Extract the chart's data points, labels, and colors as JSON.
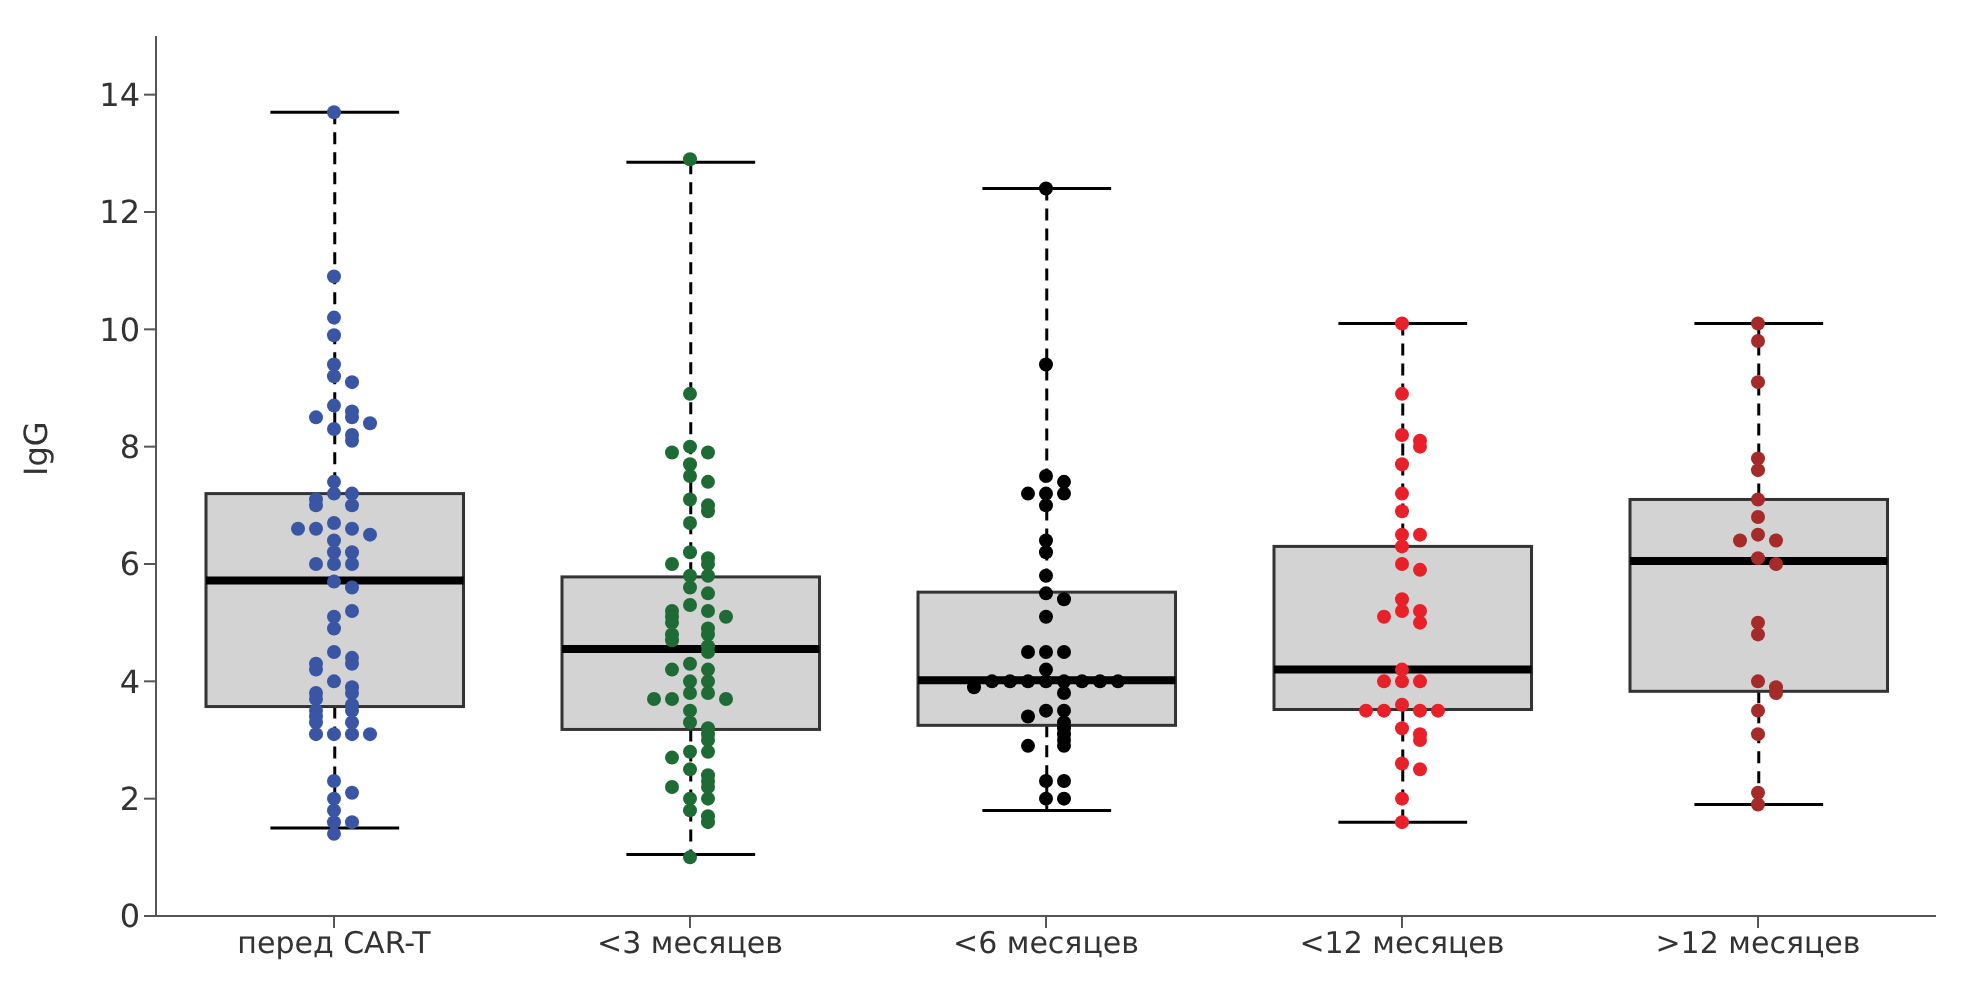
{
  "chart_data": {
    "type": "box",
    "ylabel": "IgG",
    "categories": [
      "перед CAR-T",
      "<3 месяцев",
      "<6 месяцев",
      "<12 месяцев",
      ">12 месяцев"
    ],
    "color": "#d3d3d3",
    "boxes": [
      {
        "low": 1.5,
        "q1": 3.57,
        "median": 5.72,
        "q3": 7.2,
        "high": 13.7
      },
      {
        "low": 1.05,
        "q1": 3.18,
        "median": 4.55,
        "q3": 5.78,
        "high": 12.85
      },
      {
        "low": 1.8,
        "q1": 3.25,
        "median": 4.02,
        "q3": 5.52,
        "high": 12.4
      },
      {
        "low": 1.6,
        "q1": 3.52,
        "median": 4.2,
        "q3": 6.3,
        "high": 10.1
      },
      {
        "low": 1.9,
        "q1": 3.83,
        "median": 6.05,
        "q3": 7.1,
        "high": 10.1
      }
    ],
    "ylim": [
      0,
      15
    ],
    "yticks": [
      0,
      2,
      4,
      6,
      8,
      10,
      12,
      14
    ],
    "series": [
      {
        "type": "scatter",
        "color": "#3a55a4",
        "x": [
          "перед CAR-T",
          "перед CAR-T",
          "перед CAR-T",
          "перед CAR-T",
          "перед CAR-T",
          "перед CAR-T",
          "перед CAR-T",
          "перед CAR-T",
          "перед CAR-T",
          "перед CAR-T",
          "перед CAR-T",
          "перед CAR-T",
          "перед CAR-T",
          "перед CAR-T",
          "перед CAR-T",
          "перед CAR-T",
          "перед CAR-T",
          "перед CAR-T",
          "перед CAR-T",
          "перед CAR-T",
          "перед CAR-T",
          "перед CAR-T",
          "перед CAR-T",
          "перед CAR-T",
          "перед CAR-T",
          "перед CAR-T",
          "перед CAR-T",
          "перед CAR-T",
          "перед CAR-T",
          "перед CAR-T",
          "перед CAR-T",
          "перед CAR-T",
          "перед CAR-T",
          "перед CAR-T",
          "перед CAR-T",
          "перед CAR-T",
          "перед CAR-T",
          "перед CAR-T",
          "перед CAR-T",
          "перед CAR-T",
          "перед CAR-T",
          "перед CAR-T",
          "перед CAR-T",
          "перед CAR-T",
          "перед CAR-T",
          "перед CAR-T",
          "перед CAR-T",
          "перед CAR-T",
          "перед CAR-T",
          "перед CAR-T",
          "перед CAR-T",
          "перед CAR-T",
          "перед CAR-T",
          "перед CAR-T",
          "перед CAR-T",
          "перед CAR-T",
          "перед CAR-T",
          "перед CAR-T",
          "перед CAR-T",
          "перед CAR-T",
          "перед CAR-T",
          "перед CAR-T",
          "перед CAR-T",
          "перед CAR-T"
        ],
        "values": [
          13.7,
          10.9,
          10.2,
          9.9,
          9.4,
          9.2,
          9.1,
          8.7,
          8.6,
          8.5,
          8.5,
          8.3,
          8.2,
          8.1,
          8.4,
          7.4,
          7.2,
          7.2,
          7.1,
          7.0,
          7.0,
          6.7,
          6.6,
          6.4,
          6.6,
          6.5,
          6.6,
          6.2,
          6.2,
          6.0,
          6.0,
          6.0,
          5.7,
          5.6,
          5.1,
          5.2,
          4.9,
          4.5,
          4.4,
          4.3,
          4.3,
          4.2,
          4.0,
          3.9,
          3.8,
          3.8,
          3.7,
          3.6,
          3.5,
          3.5,
          3.4,
          3.3,
          3.3,
          3.1,
          3.1,
          3.1,
          3.1,
          2.3,
          2.0,
          2.1,
          1.8,
          1.6,
          1.6,
          1.4
        ]
      },
      {
        "type": "scatter",
        "color": "#1e6b35",
        "x": [
          "<3 месяцев",
          "<3 месяцев",
          "<3 месяцев",
          "<3 месяцев",
          "<3 месяцев",
          "<3 месяцев",
          "<3 месяцев",
          "<3 месяцев",
          "<3 месяцев",
          "<3 месяцев",
          "<3 месяцев",
          "<3 месяцев",
          "<3 месяцев",
          "<3 месяцев",
          "<3 месяцев",
          "<3 месяцев",
          "<3 месяцев",
          "<3 месяцев",
          "<3 месяцев",
          "<3 месяцев",
          "<3 месяцев",
          "<3 месяцев",
          "<3 месяцев",
          "<3 месяцев",
          "<3 месяцев",
          "<3 месяцев",
          "<3 месяцев",
          "<3 месяцев",
          "<3 месяцев",
          "<3 месяцев",
          "<3 месяцев",
          "<3 месяцев",
          "<3 месяцев",
          "<3 месяцев",
          "<3 месяцев",
          "<3 месяцев",
          "<3 месяцев",
          "<3 месяцев",
          "<3 месяцев",
          "<3 месяцев",
          "<3 месяцев",
          "<3 месяцев",
          "<3 месяцев",
          "<3 месяцев",
          "<3 месяцев",
          "<3 месяцев",
          "<3 месяцев",
          "<3 месяцев",
          "<3 месяцев",
          "<3 месяцев",
          "<3 месяцев",
          "<3 месяцев",
          "<3 месяцев",
          "<3 месяцев",
          "<3 месяцев",
          "<3 месяцев",
          "<3 месяцев",
          "<3 месяцев",
          "<3 месяцев",
          "<3 месяцев",
          "<3 месяцев"
        ],
        "values": [
          12.9,
          8.9,
          8.0,
          7.9,
          7.9,
          7.7,
          7.5,
          7.4,
          7.1,
          7.0,
          6.9,
          6.7,
          6.2,
          6.1,
          6.0,
          6.0,
          5.8,
          5.8,
          5.6,
          5.5,
          5.3,
          5.2,
          5.2,
          5.1,
          5.1,
          5.0,
          4.9,
          4.8,
          4.8,
          4.7,
          4.6,
          4.5,
          4.3,
          4.2,
          4.2,
          4.0,
          4.0,
          3.8,
          3.8,
          3.7,
          3.7,
          3.7,
          3.5,
          3.3,
          3.2,
          3.1,
          3.0,
          2.8,
          2.8,
          2.7,
          2.5,
          2.4,
          2.3,
          2.2,
          2.2,
          2.0,
          2.0,
          1.8,
          1.7,
          1.6,
          1.0
        ]
      },
      {
        "type": "scatter",
        "color": "#000000",
        "x": [
          "<6 месяцев",
          "<6 месяцев",
          "<6 месяцев",
          "<6 месяцев",
          "<6 месяцев",
          "<6 месяцев",
          "<6 месяцев",
          "<6 месяцев",
          "<6 месяцев",
          "<6 месяцев",
          "<6 месяцев",
          "<6 месяцев",
          "<6 месяцев",
          "<6 месяцев",
          "<6 месяцев",
          "<6 месяцев",
          "<6 месяцев",
          "<6 месяцев",
          "<6 месяцев",
          "<6 месяцев",
          "<6 месяцев",
          "<6 месяцев",
          "<6 месяцев",
          "<6 месяцев",
          "<6 месяцев",
          "<6 месяцев",
          "<6 месяцев",
          "<6 месяцев",
          "<6 месяцев",
          "<6 месяцев",
          "<6 месяцев",
          "<6 месяцев",
          "<6 месяцев",
          "<6 месяцев",
          "<6 месяцев",
          "<6 месяцев",
          "<6 месяцев",
          "<6 месяцев",
          "<6 месяцев",
          "<6 месяцев",
          "<6 месяцев"
        ],
        "values": [
          12.4,
          9.4,
          7.5,
          7.2,
          7.2,
          7.2,
          7.4,
          7.0,
          6.4,
          6.2,
          5.8,
          5.5,
          5.4,
          5.1,
          4.5,
          4.5,
          4.5,
          4.2,
          4.0,
          4.0,
          4.0,
          4.0,
          4.0,
          4.0,
          4.0,
          4.0,
          3.9,
          3.8,
          3.5,
          3.5,
          3.4,
          3.3,
          3.2,
          3.1,
          3.0,
          2.9,
          2.9,
          2.3,
          2.3,
          2.0,
          2.0
        ]
      },
      {
        "type": "scatter",
        "color": "#e8202a",
        "x": [
          "<12 месяцев",
          "<12 месяцев",
          "<12 месяцев",
          "<12 месяцев",
          "<12 месяцев",
          "<12 месяцев",
          "<12 месяцев",
          "<12 месяцев",
          "<12 месяцев",
          "<12 месяцев",
          "<12 месяцев",
          "<12 месяцев",
          "<12 месяцев",
          "<12 месяцев",
          "<12 месяцев",
          "<12 месяцев",
          "<12 месяцев",
          "<12 месяцев",
          "<12 месяцев",
          "<12 месяцев",
          "<12 месяцев",
          "<12 месяцев",
          "<12 месяцев",
          "<12 месяцев",
          "<12 месяцев",
          "<12 месяцев",
          "<12 месяцев",
          "<12 месяцев",
          "<12 месяцев",
          "<12 месяцев",
          "<12 месяцев",
          "<12 месяцев",
          "<12 месяцев",
          "<12 месяцев"
        ],
        "values": [
          10.1,
          8.9,
          8.2,
          8.1,
          8.0,
          7.7,
          7.2,
          6.9,
          6.5,
          6.5,
          6.3,
          6.0,
          5.9,
          5.4,
          5.2,
          5.2,
          5.1,
          5.0,
          4.2,
          4.0,
          4.0,
          4.0,
          3.6,
          3.5,
          3.5,
          3.5,
          3.5,
          3.2,
          3.1,
          3.0,
          2.6,
          2.5,
          2.0,
          1.6
        ]
      },
      {
        "type": "scatter",
        "color": "#a52a2a",
        "x": [
          ">12 месяцев",
          ">12 месяцев",
          ">12 месяцев",
          ">12 месяцев",
          ">12 месяцев",
          ">12 месяцев",
          ">12 месяцев",
          ">12 месяцев",
          ">12 месяцев",
          ">12 месяцев",
          ">12 месяцев",
          ">12 месяцев",
          ">12 месяцев",
          ">12 месяцев",
          ">12 месяцев",
          ">12 месяцев",
          ">12 месяцев",
          ">12 месяцев",
          ">12 месяцев",
          ">12 месяцев",
          ">12 месяцев"
        ],
        "values": [
          10.1,
          9.8,
          9.1,
          7.8,
          7.6,
          7.1,
          6.8,
          6.5,
          6.4,
          6.4,
          6.1,
          6.0,
          5.0,
          4.8,
          4.0,
          3.9,
          3.8,
          3.5,
          3.1,
          2.1,
          1.9
        ]
      }
    ]
  }
}
